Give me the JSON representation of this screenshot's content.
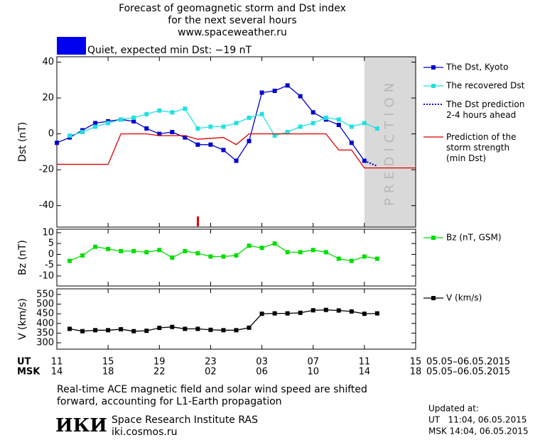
{
  "header": {
    "title_lines": [
      "Forecast of geomagnetic storm and Dst index",
      "for the next several hours",
      "www.spaceweather.ru"
    ],
    "status": "Quiet, expected min Dst: −19 nT",
    "status_color": "#0000ee"
  },
  "x_axis": {
    "ticks": [
      0,
      4,
      8,
      12,
      16,
      20,
      24,
      28
    ],
    "ut_name": "UT",
    "ut_labels": [
      "11",
      "15",
      "19",
      "23",
      "03",
      "07",
      "11",
      "15"
    ],
    "msk_name": "MSK",
    "msk_labels": [
      "14",
      "18",
      "22",
      "02",
      "06",
      "10",
      "14",
      "18"
    ],
    "date": "05.05–06.05.2015"
  },
  "chart_data": [
    {
      "type": "line",
      "y_label": "Dst (nT)",
      "xlim": [
        0,
        28
      ],
      "ylim": [
        -52,
        43
      ],
      "yticks": [
        -40,
        -20,
        0,
        20,
        40
      ],
      "shade": {
        "x": [
          24,
          28
        ],
        "label": "PREDICTION",
        "color": "#d9d9d9"
      },
      "series": [
        {
          "name": "The Dst, Kyoto",
          "color": "#0000cc",
          "marker": "square",
          "style": "solid",
          "x": [
            0,
            1,
            2,
            3,
            4,
            5,
            6,
            7,
            8,
            9,
            10,
            11,
            12,
            13,
            14,
            15,
            16,
            17,
            18,
            19,
            20,
            21,
            22,
            23,
            24
          ],
          "values": [
            -5,
            -2,
            2,
            6,
            7,
            8,
            7,
            3,
            0,
            1,
            -2,
            -6,
            -6,
            -9,
            -15,
            -4,
            23,
            24,
            27,
            21,
            12,
            8,
            5,
            -5,
            -15
          ]
        },
        {
          "name": "The recovered Dst",
          "color": "#22e0e0",
          "marker": "square",
          "style": "solid",
          "x": [
            1,
            2,
            3,
            4,
            5,
            6,
            7,
            8,
            9,
            10,
            11,
            12,
            13,
            14,
            15,
            16,
            17,
            18,
            19,
            20,
            21,
            22,
            23,
            24,
            25
          ],
          "values": [
            -1,
            1,
            4,
            6,
            8,
            9,
            11,
            13,
            12,
            14,
            3,
            4,
            4,
            6,
            9,
            11,
            -1,
            1,
            4,
            6,
            9,
            8,
            4,
            6,
            3
          ]
        },
        {
          "name": "The Dst prediction\n2-4 hours ahead",
          "color": "#0000cc",
          "marker": "none",
          "style": "dotted",
          "x": [
            24,
            25
          ],
          "values": [
            -15,
            -18
          ]
        },
        {
          "name": "Prediction of the\nstorm strength\n(min Dst)",
          "color": "#dd0000",
          "marker": "none",
          "style": "solid",
          "x": [
            0,
            4,
            5,
            7,
            8,
            10,
            11,
            13,
            14,
            15,
            21,
            22,
            23,
            24,
            28
          ],
          "values": [
            -17,
            -17,
            0,
            0,
            -1,
            -1,
            -3,
            -2,
            -6,
            0,
            0,
            -9,
            -9,
            -19,
            -19
          ]
        }
      ]
    },
    {
      "type": "line",
      "y_label": "Bz (nT)",
      "xlim": [
        0,
        28
      ],
      "ylim": [
        -14.6,
        11.6
      ],
      "yticks": [
        -10,
        -5,
        0,
        5,
        10
      ],
      "series": [
        {
          "name": "Bz (nT, GSM)",
          "color": "#00dd00",
          "marker": "square",
          "style": "solid",
          "x": [
            1,
            2,
            3,
            4,
            5,
            6,
            7,
            8,
            9,
            10,
            11,
            12,
            13,
            14,
            15,
            16,
            17,
            18,
            19,
            20,
            21,
            22,
            23,
            24,
            25
          ],
          "values": [
            -3,
            -0.5,
            3.5,
            2.5,
            1.5,
            1.5,
            1,
            2,
            -1.5,
            1.5,
            0.5,
            -1,
            -1,
            -0.5,
            4,
            3,
            5,
            1,
            1,
            2,
            1,
            -2,
            -3,
            -1,
            -2
          ]
        }
      ]
    },
    {
      "type": "line",
      "y_label": "V (km/s)",
      "xlim": [
        0,
        28
      ],
      "ylim": [
        267,
        579
      ],
      "yticks": [
        300,
        350,
        400,
        450,
        500,
        550
      ],
      "series": [
        {
          "name": "V (km/s)",
          "color": "#000000",
          "marker": "square",
          "style": "solid",
          "x": [
            1,
            2,
            3,
            4,
            5,
            6,
            7,
            8,
            9,
            10,
            11,
            12,
            13,
            14,
            15,
            16,
            17,
            18,
            19,
            20,
            21,
            22,
            23,
            24,
            25
          ],
          "values": [
            372,
            360,
            365,
            365,
            370,
            360,
            362,
            377,
            382,
            372,
            372,
            367,
            365,
            365,
            378,
            450,
            452,
            452,
            455,
            468,
            470,
            467,
            462,
            450,
            452
          ]
        }
      ]
    }
  ],
  "footer": {
    "note_lines": [
      "Real-time ACE magnetic field and solar wind speed are shifted",
      "forward, accounting for L1-Earth propagation"
    ],
    "logo": "ИКИ",
    "institute": "Space Research Institute RAS",
    "site": "iki.cosmos.ru",
    "updated_title": "Updated at:",
    "updated_ut": "UT   11:04, 06.05.2015",
    "updated_msk": "MSK 14:04, 06.05.2015"
  }
}
